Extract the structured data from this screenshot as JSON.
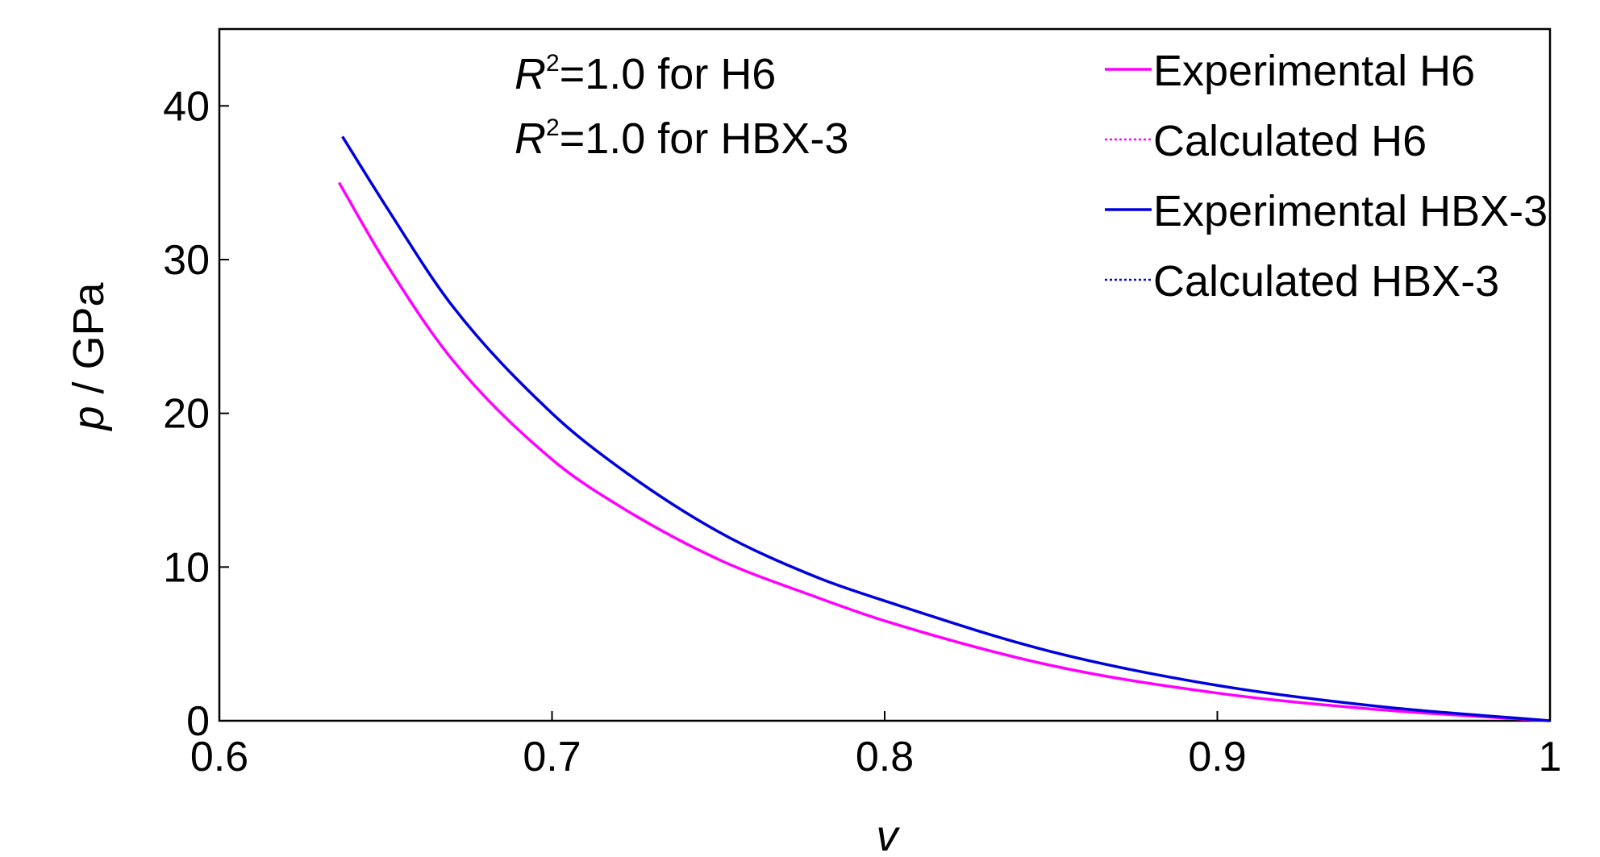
{
  "chart_data": {
    "type": "line",
    "xlabel": "v",
    "ylabel": "p / GPa",
    "xlim": [
      0.6,
      1.0
    ],
    "ylim": [
      0,
      45
    ],
    "xticks": [
      "0.6",
      "0.7",
      "0.8",
      "0.9",
      "1"
    ],
    "yticks": [
      "0",
      "10",
      "20",
      "30",
      "40"
    ],
    "grid": false,
    "legend_position": "top-right",
    "annotations": [
      {
        "italic": "R",
        "sup": "2",
        "text": "=1.0 for H6"
      },
      {
        "italic": "R",
        "sup": "2",
        "text": "=1.0 for HBX-3"
      }
    ],
    "series": [
      {
        "name": "Experimental H6",
        "color": "#ff00ff",
        "style": "solid",
        "x": [
          0.636,
          0.65,
          0.67,
          0.7,
          0.72,
          0.75,
          0.78,
          0.8,
          0.85,
          0.9,
          0.95,
          1.0
        ],
        "y": [
          35.0,
          29.8,
          23.5,
          17.0,
          14.0,
          10.5,
          8.0,
          6.5,
          3.6,
          1.8,
          0.7,
          0.0
        ]
      },
      {
        "name": "Calculated H6",
        "color": "#ff00ff",
        "style": "dotted",
        "x": [
          0.636,
          0.65,
          0.67,
          0.7,
          0.72,
          0.75,
          0.78,
          0.8,
          0.85,
          0.9,
          0.95,
          1.0
        ],
        "y": [
          35.0,
          29.8,
          23.5,
          17.0,
          14.0,
          10.5,
          8.0,
          6.5,
          3.6,
          1.8,
          0.7,
          0.0
        ]
      },
      {
        "name": "Experimental HBX-3",
        "color": "#0000dd",
        "style": "solid",
        "x": [
          0.637,
          0.65,
          0.67,
          0.7,
          0.72,
          0.75,
          0.78,
          0.8,
          0.85,
          0.9,
          0.95,
          1.0
        ],
        "y": [
          38.0,
          33.5,
          27.0,
          20.0,
          16.5,
          12.3,
          9.3,
          7.8,
          4.5,
          2.3,
          0.9,
          0.0
        ]
      },
      {
        "name": "Calculated HBX-3",
        "color": "#0000dd",
        "style": "dotted",
        "x": [
          0.637,
          0.65,
          0.67,
          0.7,
          0.72,
          0.75,
          0.78,
          0.8,
          0.85,
          0.9,
          0.95,
          1.0
        ],
        "y": [
          38.0,
          33.5,
          27.0,
          20.0,
          16.5,
          12.3,
          9.3,
          7.8,
          4.5,
          2.3,
          0.9,
          0.0
        ]
      }
    ]
  }
}
